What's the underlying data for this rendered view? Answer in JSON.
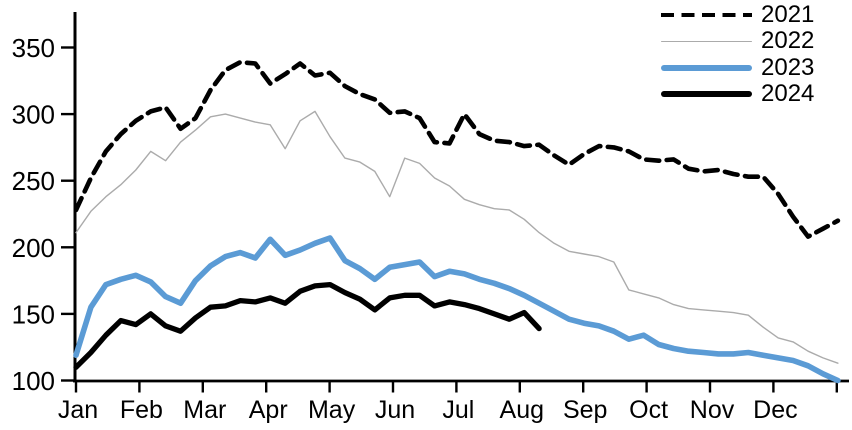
{
  "chart_data": {
    "type": "line",
    "title": "",
    "x_axis": {
      "months": [
        "Jan",
        "Feb",
        "Mar",
        "Apr",
        "May",
        "Jun",
        "Jul",
        "Aug",
        "Sep",
        "Oct",
        "Nov",
        "Dec"
      ],
      "sampling": "weekly"
    },
    "y_axis": {
      "ticks": [
        100,
        150,
        200,
        250,
        300,
        350
      ],
      "range": [
        100,
        362
      ]
    },
    "legend": {
      "position": "top-right",
      "entries": [
        "2021",
        "2022",
        "2023",
        "2024"
      ]
    },
    "axis_color": "#000000",
    "series": [
      {
        "name": "2021",
        "color": "#000000",
        "style": "dashed",
        "width": 4.6,
        "values": [
          228,
          252,
          272,
          285,
          295,
          302,
          305,
          289,
          297,
          318,
          333,
          339,
          338,
          323,
          330,
          338,
          329,
          331,
          321,
          315,
          311,
          301,
          302,
          297,
          279,
          278,
          300,
          285,
          280,
          279,
          276,
          277,
          269,
          262,
          270,
          276,
          275,
          272,
          266,
          265,
          266,
          259,
          257,
          258,
          255,
          253,
          253,
          240,
          223,
          208,
          214,
          220
        ]
      },
      {
        "name": "2022",
        "color": "#ABABAB",
        "style": "solid",
        "width": 1.4,
        "values": [
          211,
          227,
          238,
          247,
          258,
          272,
          265,
          279,
          288,
          298,
          300,
          297,
          294,
          292,
          274,
          295,
          302,
          283,
          267,
          264,
          257,
          238,
          267,
          263,
          252,
          246,
          236,
          232,
          229,
          228,
          221,
          211,
          203,
          197,
          195,
          193,
          189,
          168,
          165,
          162,
          157,
          154,
          153,
          152,
          151,
          149,
          140,
          132,
          129,
          122,
          117,
          113
        ]
      },
      {
        "name": "2023",
        "color": "#5B9BD5",
        "style": "solid",
        "width": 5.6,
        "values": [
          119,
          155,
          172,
          176,
          179,
          174,
          163,
          158,
          175,
          186,
          193,
          196,
          192,
          206,
          194,
          198,
          203,
          207,
          190,
          184,
          176,
          185,
          187,
          189,
          178,
          182,
          180,
          176,
          173,
          169,
          164,
          158,
          152,
          146,
          143,
          141,
          137,
          131,
          134,
          127,
          124,
          122,
          121,
          120,
          120,
          121,
          119,
          117,
          115,
          111,
          105,
          100
        ]
      },
      {
        "name": "2024",
        "color": "#000000",
        "style": "solid",
        "width": 5.3,
        "values": [
          110,
          121,
          134,
          145,
          142,
          150,
          141,
          137,
          147,
          155,
          156,
          160,
          159,
          162,
          158,
          167,
          171,
          172,
          166,
          161,
          153,
          162,
          164,
          164,
          156,
          159,
          157,
          154,
          150,
          146,
          151,
          139
        ]
      }
    ]
  }
}
